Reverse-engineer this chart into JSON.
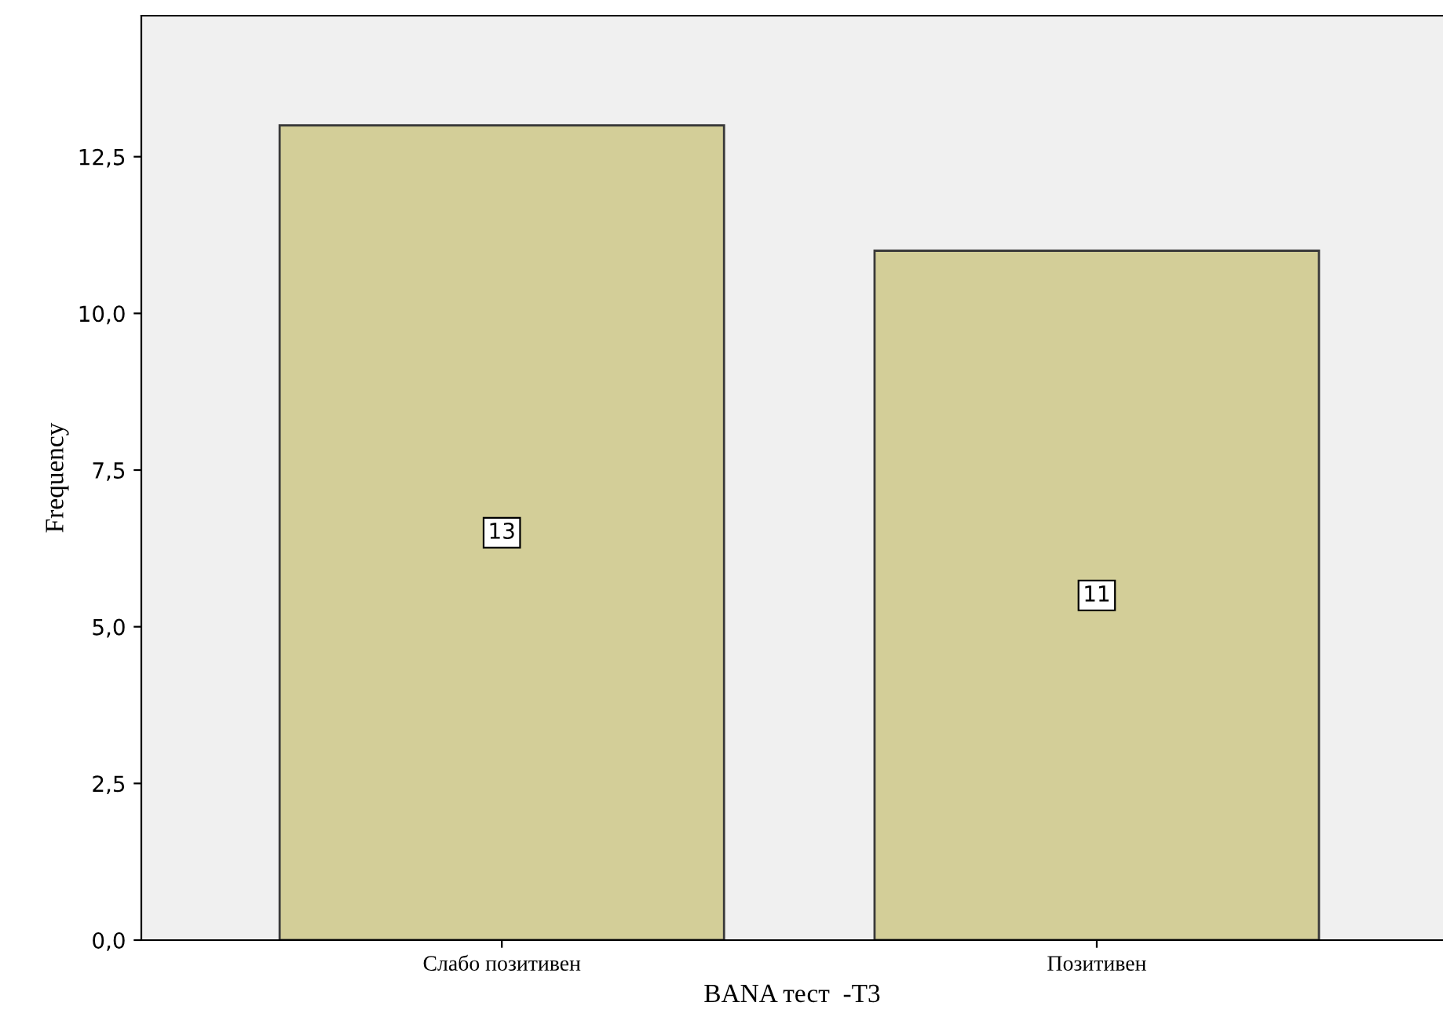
{
  "chart_data": {
    "type": "bar",
    "xlabel": "BANA тест  -T3",
    "ylabel": "Frequency",
    "categories": [
      "Слабо позитивен",
      "Позитивен"
    ],
    "values": [
      13,
      11
    ],
    "color": "#d3ce98",
    "data_labels": true,
    "grid": false,
    "legend": false,
    "ylim": [
      0,
      14.75
    ],
    "yticks": [
      {
        "value": 0,
        "label": "0,0"
      },
      {
        "value": 2.5,
        "label": "2,5"
      },
      {
        "value": 5,
        "label": "5,0"
      },
      {
        "value": 7.5,
        "label": "7,5"
      },
      {
        "value": 10,
        "label": "10,0"
      },
      {
        "value": 12.5,
        "label": "12,5"
      }
    ]
  }
}
